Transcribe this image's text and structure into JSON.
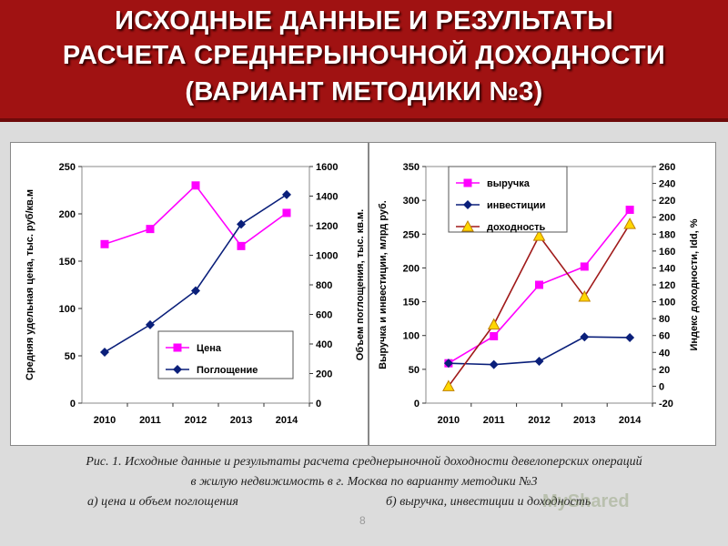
{
  "slide": {
    "title_line1": "ИСХОДНЫЕ ДАННЫЕ И РЕЗУЛЬТАТЫ",
    "title_line2": "РАСЧЕТА СРЕДНЕРЫНОЧНОЙ ДОХОДНОСТИ",
    "title_line3": "(ВАРИАНТ МЕТОДИКИ №3)",
    "caption_line1": "Рис. 1. Исходные данные и результаты расчета среднерыночной доходности девелоперских операций",
    "caption_line2": "в жилую недвижимость в г. Москва по варианту методики №3",
    "caption_a": "а) цена и объем поглощения",
    "caption_b": "б) выручка, инвестиции и доходность",
    "page_number": "8",
    "watermark": "MyShared"
  },
  "colors": {
    "header": "#a01212",
    "price": "#ff00ff",
    "absorption": "#0a1f7a",
    "revenue": "#ff00ff",
    "investment": "#0a1f7a",
    "yield": "#a01a1a",
    "yield_marker": "#ffd700"
  },
  "chart_data": [
    {
      "type": "line",
      "categories": [
        "2010",
        "2011",
        "2012",
        "2013",
        "2014"
      ],
      "ylabel": "Средняя удельная цена, тыс. руб/кв.м",
      "y2label": "Объем поглощения, тыс. кв.м.",
      "ylim": [
        0,
        250
      ],
      "y_ticks": [
        "0",
        "50",
        "100",
        "150",
        "200",
        "250"
      ],
      "y2lim": [
        0,
        1600
      ],
      "y2_ticks": [
        "0",
        "200",
        "400",
        "600",
        "800",
        "1000",
        "1200",
        "1400",
        "1600"
      ],
      "legend_position": "bottom-right",
      "grid": false,
      "series": [
        {
          "name": "Цена",
          "axis": "left",
          "marker": "square",
          "values": [
            168,
            184,
            230,
            166,
            201
          ]
        },
        {
          "name": "Поглощение",
          "axis": "right",
          "marker": "diamond",
          "values": [
            345,
            530,
            760,
            1210,
            1410
          ]
        }
      ]
    },
    {
      "type": "line",
      "categories": [
        "2010",
        "2011",
        "2012",
        "2013",
        "2014"
      ],
      "ylabel": "Выручка и инвестиции, млрд руб.",
      "y2label": "Индекс доходности, Idd, %",
      "ylim": [
        0,
        350
      ],
      "y_ticks": [
        "0",
        "50",
        "100",
        "150",
        "200",
        "250",
        "300",
        "350"
      ],
      "y2lim": [
        -20,
        260
      ],
      "y2_ticks": [
        "-20",
        "0",
        "20",
        "40",
        "60",
        "80",
        "100",
        "120",
        "140",
        "160",
        "180",
        "200",
        "220",
        "240",
        "260"
      ],
      "legend_position": "top-left",
      "grid": false,
      "series": [
        {
          "name": "выручка",
          "axis": "left",
          "marker": "square",
          "values": [
            59,
            99,
            175,
            202,
            286
          ]
        },
        {
          "name": "инвестиции",
          "axis": "left",
          "marker": "diamond",
          "values": [
            59,
            57,
            62,
            98,
            97
          ]
        },
        {
          "name": "доходность",
          "axis": "right",
          "marker": "triangle",
          "values": [
            0,
            73,
            178,
            106,
            192
          ]
        }
      ]
    }
  ]
}
